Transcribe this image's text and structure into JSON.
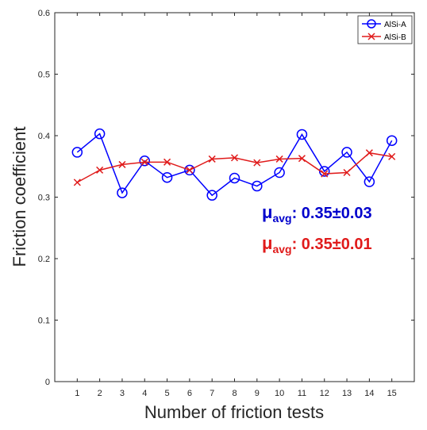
{
  "chart_data": {
    "type": "line",
    "title": "",
    "xlabel": "Number of friction tests",
    "ylabel": "Friction coefficient",
    "x": [
      1,
      2,
      3,
      4,
      5,
      6,
      7,
      8,
      9,
      10,
      11,
      12,
      13,
      14,
      15
    ],
    "xlim": [
      0,
      16
    ],
    "ylim": [
      0,
      0.6
    ],
    "yticks": [
      "0",
      "0.1",
      "0.2",
      "0.3",
      "0.4",
      "0.5",
      "0.6"
    ],
    "xticks": [
      "1",
      "2",
      "3",
      "4",
      "5",
      "6",
      "7",
      "8",
      "9",
      "10",
      "11",
      "12",
      "13",
      "14",
      "15"
    ],
    "grid": false,
    "legend_position": "top-right",
    "series": [
      {
        "name": "AlSi-A",
        "color": "#0000ff",
        "marker": "circle",
        "values": [
          0.373,
          0.403,
          0.307,
          0.359,
          0.332,
          0.344,
          0.303,
          0.331,
          0.318,
          0.34,
          0.402,
          0.342,
          0.373,
          0.325,
          0.392
        ]
      },
      {
        "name": "AlSi-B",
        "color": "#e01b1b",
        "marker": "x",
        "values": [
          0.324,
          0.344,
          0.353,
          0.357,
          0.357,
          0.344,
          0.362,
          0.364,
          0.356,
          0.362,
          0.363,
          0.338,
          0.34,
          0.372,
          0.366
        ]
      }
    ],
    "annotations": [
      {
        "mu": "μ",
        "sub": "avg",
        "value": ": 0.35±0.03",
        "color": "#0000cc"
      },
      {
        "mu": "μ",
        "sub": "avg",
        "value": ": 0.35±0.01",
        "color": "#e01b1b"
      }
    ]
  }
}
